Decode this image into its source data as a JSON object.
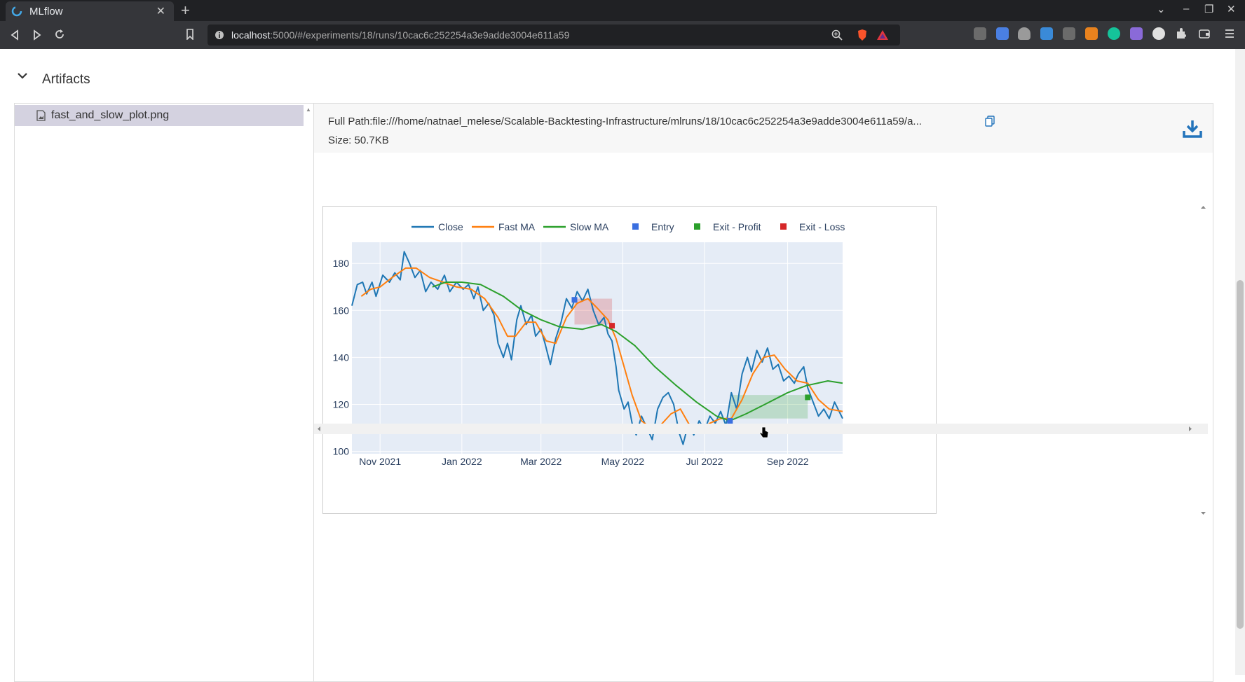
{
  "browser": {
    "tab_title": "MLflow",
    "new_tab": "+",
    "close_tab": "✕",
    "url_host": "localhost",
    "url_path": ":5000/#/experiments/18/runs/10cac6c252254a3e9adde3004e611a59",
    "window_controls": [
      "⌄",
      "–",
      "❐",
      "✕"
    ]
  },
  "artifacts": {
    "section_title": "Artifacts",
    "file_name": "fast_and_slow_plot.png",
    "full_path": "Full Path:file:///home/natnael_melese/Scalable-Backtesting-Infrastructure/mlruns/18/10cac6c252254a3e9adde3004e611a59/a...",
    "size": "Size: 50.7KB"
  },
  "colors": {
    "close": "#1f77b4",
    "fast_ma": "#ff7f0e",
    "slow_ma": "#2ca02c",
    "entry": "#3a6fe0",
    "exit_profit": "#2ca02c",
    "exit_loss": "#d62728",
    "plot_bg": "#e5ecf6"
  },
  "chart_data": {
    "type": "line",
    "title": "",
    "xlabel": "",
    "ylabel": "",
    "x_ticks": [
      "Nov 2021",
      "Jan 2022",
      "Mar 2022",
      "May 2022",
      "Jul 2022",
      "Sep 2022"
    ],
    "y_ticks": [
      100,
      120,
      140,
      160,
      180
    ],
    "ylim": [
      99,
      189
    ],
    "xlim": [
      "2021-10-11",
      "2022-10-12"
    ],
    "legend": [
      "Close",
      "Fast MA",
      "Slow MA",
      "Entry",
      "Exit - Profit",
      "Exit - Loss"
    ],
    "series": [
      {
        "name": "Close",
        "color": "#1f77b4",
        "points": [
          [
            "2021-10-11",
            162
          ],
          [
            "2021-10-15",
            171
          ],
          [
            "2021-10-19",
            172
          ],
          [
            "2021-10-22",
            167
          ],
          [
            "2021-10-26",
            172
          ],
          [
            "2021-10-29",
            166
          ],
          [
            "2021-11-03",
            175
          ],
          [
            "2021-11-08",
            172
          ],
          [
            "2021-11-12",
            176
          ],
          [
            "2021-11-16",
            173
          ],
          [
            "2021-11-19",
            185
          ],
          [
            "2021-11-23",
            180
          ],
          [
            "2021-11-27",
            174
          ],
          [
            "2021-12-01",
            177
          ],
          [
            "2021-12-05",
            168
          ],
          [
            "2021-12-09",
            172
          ],
          [
            "2021-12-14",
            169
          ],
          [
            "2021-12-19",
            175
          ],
          [
            "2021-12-23",
            168
          ],
          [
            "2021-12-28",
            172
          ],
          [
            "2022-01-02",
            169
          ],
          [
            "2022-01-06",
            171
          ],
          [
            "2022-01-10",
            165
          ],
          [
            "2022-01-13",
            170
          ],
          [
            "2022-01-17",
            160
          ],
          [
            "2022-01-21",
            163
          ],
          [
            "2022-01-25",
            158
          ],
          [
            "2022-01-28",
            146
          ],
          [
            "2022-02-01",
            140
          ],
          [
            "2022-02-04",
            146
          ],
          [
            "2022-02-07",
            139
          ],
          [
            "2022-02-11",
            156
          ],
          [
            "2022-02-14",
            162
          ],
          [
            "2022-02-18",
            154
          ],
          [
            "2022-02-22",
            158
          ],
          [
            "2022-02-25",
            149
          ],
          [
            "2022-03-01",
            152
          ],
          [
            "2022-03-04",
            146
          ],
          [
            "2022-03-08",
            137
          ],
          [
            "2022-03-12",
            148
          ],
          [
            "2022-03-16",
            155
          ],
          [
            "2022-03-20",
            165
          ],
          [
            "2022-03-24",
            161
          ],
          [
            "2022-03-28",
            168
          ],
          [
            "2022-04-01",
            164
          ],
          [
            "2022-04-05",
            169
          ],
          [
            "2022-04-09",
            160
          ],
          [
            "2022-04-13",
            154
          ],
          [
            "2022-04-17",
            157
          ],
          [
            "2022-04-20",
            150
          ],
          [
            "2022-04-23",
            147
          ],
          [
            "2022-04-26",
            136
          ],
          [
            "2022-04-28",
            126
          ],
          [
            "2022-05-02",
            118
          ],
          [
            "2022-05-05",
            121
          ],
          [
            "2022-05-08",
            112
          ],
          [
            "2022-05-11",
            107
          ],
          [
            "2022-05-15",
            115
          ],
          [
            "2022-05-19",
            110
          ],
          [
            "2022-05-23",
            105
          ],
          [
            "2022-05-27",
            118
          ],
          [
            "2022-05-31",
            123
          ],
          [
            "2022-06-04",
            125
          ],
          [
            "2022-06-08",
            120
          ],
          [
            "2022-06-12",
            108
          ],
          [
            "2022-06-15",
            103
          ],
          [
            "2022-06-19",
            112
          ],
          [
            "2022-06-23",
            107
          ],
          [
            "2022-06-27",
            113
          ],
          [
            "2022-07-01",
            109
          ],
          [
            "2022-07-05",
            115
          ],
          [
            "2022-07-09",
            112
          ],
          [
            "2022-07-13",
            117
          ],
          [
            "2022-07-17",
            111
          ],
          [
            "2022-07-21",
            125
          ],
          [
            "2022-07-25",
            118
          ],
          [
            "2022-07-29",
            133
          ],
          [
            "2022-08-02",
            140
          ],
          [
            "2022-08-05",
            134
          ],
          [
            "2022-08-09",
            143
          ],
          [
            "2022-08-13",
            138
          ],
          [
            "2022-08-17",
            144
          ],
          [
            "2022-08-21",
            135
          ],
          [
            "2022-08-25",
            137
          ],
          [
            "2022-08-29",
            130
          ],
          [
            "2022-09-02",
            132
          ],
          [
            "2022-09-06",
            129
          ],
          [
            "2022-09-09",
            133
          ],
          [
            "2022-09-13",
            136
          ],
          [
            "2022-09-16",
            127
          ],
          [
            "2022-09-20",
            121
          ],
          [
            "2022-09-24",
            115
          ],
          [
            "2022-09-28",
            118
          ],
          [
            "2022-10-02",
            114
          ],
          [
            "2022-10-06",
            121
          ],
          [
            "2022-10-12",
            114
          ]
        ]
      },
      {
        "name": "Fast MA",
        "color": "#ff7f0e",
        "points": [
          [
            "2021-10-18",
            166
          ],
          [
            "2021-10-25",
            169
          ],
          [
            "2021-11-01",
            170
          ],
          [
            "2021-11-10",
            174
          ],
          [
            "2021-11-20",
            178
          ],
          [
            "2021-11-28",
            178
          ],
          [
            "2021-12-08",
            174
          ],
          [
            "2021-12-18",
            172
          ],
          [
            "2021-12-28",
            170
          ],
          [
            "2022-01-08",
            169
          ],
          [
            "2022-01-18",
            165
          ],
          [
            "2022-01-28",
            157
          ],
          [
            "2022-02-04",
            149
          ],
          [
            "2022-02-10",
            149
          ],
          [
            "2022-02-18",
            155
          ],
          [
            "2022-02-25",
            155
          ],
          [
            "2022-03-05",
            147
          ],
          [
            "2022-03-12",
            146
          ],
          [
            "2022-03-20",
            157
          ],
          [
            "2022-03-28",
            163
          ],
          [
            "2022-04-05",
            165
          ],
          [
            "2022-04-12",
            161
          ],
          [
            "2022-04-20",
            156
          ],
          [
            "2022-04-26",
            148
          ],
          [
            "2022-05-02",
            136
          ],
          [
            "2022-05-08",
            124
          ],
          [
            "2022-05-15",
            113
          ],
          [
            "2022-05-22",
            110
          ],
          [
            "2022-05-29",
            111
          ],
          [
            "2022-06-06",
            116
          ],
          [
            "2022-06-13",
            118
          ],
          [
            "2022-06-20",
            111
          ],
          [
            "2022-06-27",
            109
          ],
          [
            "2022-07-05",
            112
          ],
          [
            "2022-07-13",
            114
          ],
          [
            "2022-07-21",
            114
          ],
          [
            "2022-07-29",
            122
          ],
          [
            "2022-08-06",
            133
          ],
          [
            "2022-08-14",
            140
          ],
          [
            "2022-08-22",
            141
          ],
          [
            "2022-08-30",
            135
          ],
          [
            "2022-09-08",
            130
          ],
          [
            "2022-09-16",
            129
          ],
          [
            "2022-09-24",
            122
          ],
          [
            "2022-10-02",
            118
          ],
          [
            "2022-10-12",
            117
          ]
        ]
      },
      {
        "name": "Slow MA",
        "color": "#2ca02c",
        "points": [
          [
            "2021-12-10",
            170
          ],
          [
            "2021-12-20",
            172
          ],
          [
            "2022-01-01",
            172
          ],
          [
            "2022-01-15",
            171
          ],
          [
            "2022-02-01",
            166
          ],
          [
            "2022-02-15",
            160
          ],
          [
            "2022-03-01",
            156
          ],
          [
            "2022-03-15",
            153
          ],
          [
            "2022-04-01",
            152
          ],
          [
            "2022-04-15",
            154
          ],
          [
            "2022-04-26",
            151
          ],
          [
            "2022-05-10",
            145
          ],
          [
            "2022-05-25",
            136
          ],
          [
            "2022-06-10",
            128
          ],
          [
            "2022-06-25",
            121
          ],
          [
            "2022-07-10",
            115
          ],
          [
            "2022-07-20",
            113
          ],
          [
            "2022-08-01",
            116
          ],
          [
            "2022-08-15",
            120
          ],
          [
            "2022-09-01",
            125
          ],
          [
            "2022-09-15",
            128
          ],
          [
            "2022-10-01",
            130
          ],
          [
            "2022-10-12",
            129
          ]
        ]
      }
    ],
    "markers": {
      "entry": [
        [
          "2022-03-26",
          164.5
        ],
        [
          "2022-07-20",
          113
        ]
      ],
      "exit_profit": [
        [
          "2022-09-16",
          123
        ]
      ],
      "exit_loss": [
        [
          "2022-04-23",
          153.5
        ]
      ]
    },
    "trade_boxes": [
      {
        "type": "loss",
        "x0": "2022-03-26",
        "x1": "2022-04-23",
        "y0": 154,
        "y1": 165
      },
      {
        "type": "profit",
        "x0": "2022-07-20",
        "x1": "2022-09-16",
        "y0": 114,
        "y1": 124
      }
    ]
  }
}
